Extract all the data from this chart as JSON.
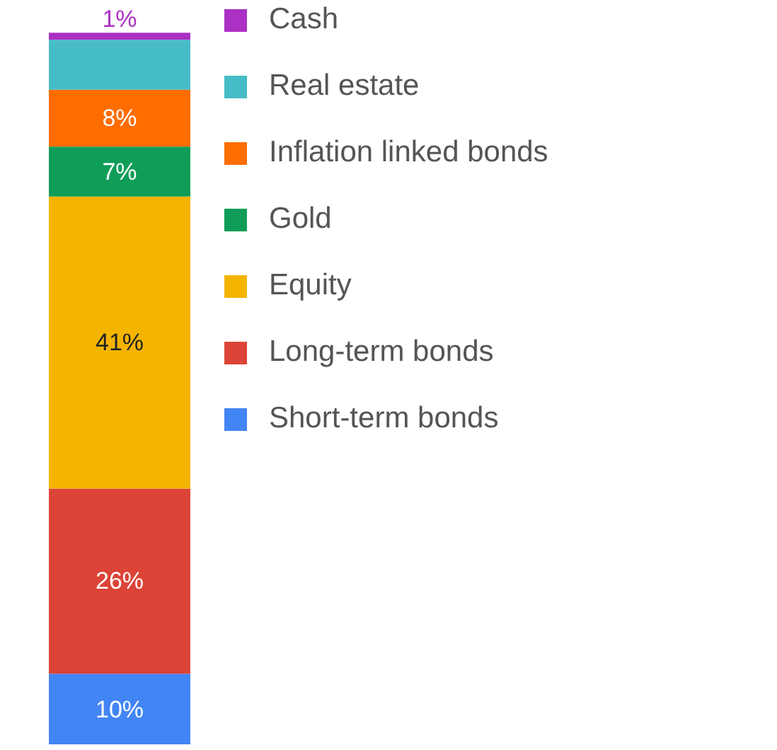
{
  "chart_data": {
    "type": "bar",
    "stacked": true,
    "categories": [
      null
    ],
    "legend": "top right",
    "series": [
      {
        "name": "Short-term bonds",
        "color": "#4285f4",
        "values": [
          10
        ],
        "value_labels": [
          "10%"
        ]
      },
      {
        "name": "Long-term bonds",
        "color": "#db4437",
        "values": [
          26
        ],
        "value_labels": [
          "26%"
        ]
      },
      {
        "name": "Equity",
        "color": "#f4b400",
        "values": [
          41
        ],
        "value_labels": [
          "41%"
        ]
      },
      {
        "name": "Gold",
        "color": "#0f9d58",
        "values": [
          7
        ],
        "value_labels": [
          "7%"
        ]
      },
      {
        "name": "Inflation linked bonds",
        "color": "#ff6d00",
        "values": [
          8
        ],
        "value_labels": [
          "8%"
        ]
      },
      {
        "name": "Real estate",
        "color": "#46bdc6",
        "values": [
          7
        ],
        "value_labels": [
          null
        ]
      },
      {
        "name": "Cash",
        "color": "#ab30c4",
        "values": [
          1
        ],
        "value_labels": [
          "1%"
        ]
      }
    ]
  }
}
